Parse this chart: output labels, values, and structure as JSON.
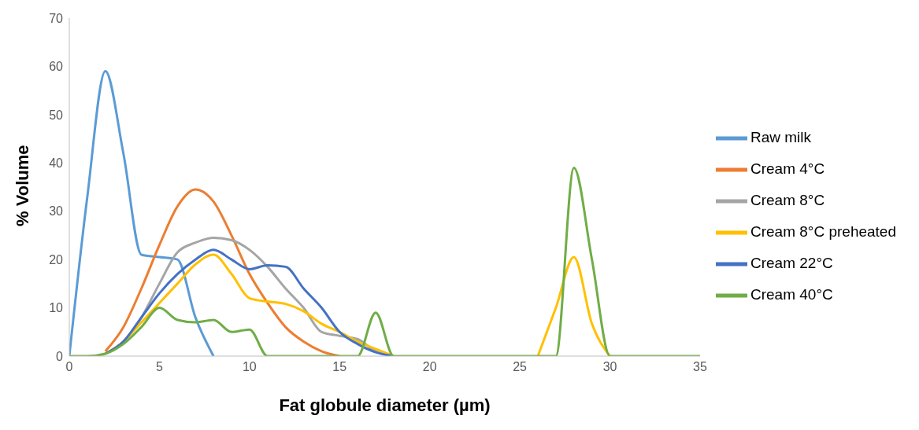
{
  "chart_data": {
    "type": "line",
    "xlabel": "Fat globule diameter (µm)",
    "ylabel": "% Volume",
    "x": [
      0,
      1,
      2,
      3,
      4,
      5,
      6,
      7,
      8,
      9,
      10,
      11,
      12,
      13,
      14,
      15,
      16,
      17,
      18,
      19,
      20,
      21,
      22,
      23,
      24,
      25,
      26,
      27,
      28,
      29,
      30,
      31,
      32,
      33,
      34,
      35
    ],
    "series": [
      {
        "name": "Raw milk",
        "color": "#5b9bd5",
        "values": [
          0,
          33,
          59,
          42,
          21,
          20.5,
          20,
          8,
          0,
          null,
          null,
          null,
          null,
          null,
          null,
          null,
          null,
          null,
          null,
          null,
          null,
          null,
          null,
          null,
          null,
          null,
          null,
          null,
          null,
          null,
          null,
          null,
          null,
          null,
          null,
          null
        ]
      },
      {
        "name": "Cream 4°C",
        "color": "#ed7d31",
        "values": [
          null,
          null,
          1,
          6,
          14,
          23,
          31,
          34.5,
          32,
          25,
          17,
          11,
          6,
          3,
          1,
          0,
          null,
          null,
          null,
          null,
          null,
          null,
          null,
          null,
          null,
          null,
          null,
          null,
          null,
          null,
          null,
          null,
          null,
          null,
          null,
          null
        ]
      },
      {
        "name": "Cream 8°C",
        "color": "#a5a5a5",
        "values": [
          null,
          null,
          0.5,
          3,
          8,
          15,
          21.5,
          23.5,
          24.5,
          24,
          22,
          18.5,
          14,
          10,
          5,
          4.2,
          3.5,
          1,
          0,
          null,
          null,
          null,
          null,
          null,
          null,
          null,
          null,
          null,
          null,
          null,
          null,
          null,
          null,
          null,
          null,
          null
        ]
      },
      {
        "name": "Cream 8°C preheated",
        "color": "#ffc000",
        "values": [
          null,
          null,
          0.5,
          3,
          7,
          11,
          15,
          19,
          21,
          17,
          12,
          11.3,
          10.8,
          9.3,
          6.7,
          5,
          3,
          1.5,
          0,
          null,
          null,
          null,
          null,
          null,
          null,
          null,
          0,
          10,
          20.5,
          6.7,
          0,
          null,
          null,
          null,
          null,
          null
        ]
      },
      {
        "name": "Cream 22°C",
        "color": "#4472c4",
        "values": [
          null,
          null,
          0.5,
          3,
          8,
          13,
          17,
          20,
          22,
          20,
          18,
          18.8,
          18.5,
          14,
          10,
          5,
          2.5,
          0.8,
          0,
          null,
          null,
          null,
          null,
          null,
          null,
          null,
          null,
          null,
          null,
          null,
          null,
          null,
          null,
          null,
          null,
          null
        ]
      },
      {
        "name": "Cream 40°C",
        "color": "#70ad47",
        "values": [
          0,
          0,
          0.5,
          2.5,
          6,
          10,
          7.5,
          7,
          7.5,
          5,
          5.5,
          0,
          0,
          0,
          0,
          0,
          0,
          9,
          0,
          0,
          0,
          0,
          0,
          0,
          0,
          0,
          0,
          0,
          39,
          20,
          0,
          0,
          0,
          0,
          0,
          0
        ]
      }
    ],
    "xlim": [
      0,
      35
    ],
    "xticks": [
      0,
      5,
      10,
      15,
      20,
      25,
      30,
      35
    ],
    "ylim": [
      0,
      70
    ],
    "yticks": [
      0,
      10,
      20,
      30,
      40,
      50,
      60,
      70
    ],
    "grid": false,
    "legend": "right",
    "line_style": "solid"
  }
}
